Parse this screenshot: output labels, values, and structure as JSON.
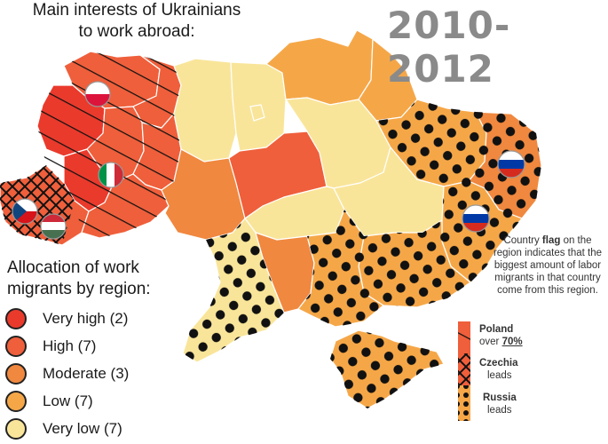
{
  "header": {
    "title_line1": "Main interests of Ukrainians",
    "title_line2": "to work abroad:",
    "period": "2010-2012"
  },
  "legend": {
    "title_line1": "Allocation of work",
    "title_line2": "migrants by region:",
    "items": [
      {
        "label": "Very high (2)",
        "color": "#ea3a2c"
      },
      {
        "label": "High (7)",
        "color": "#ef5f3b"
      },
      {
        "label": "Moderate (3)",
        "color": "#f0883f"
      },
      {
        "label": "Low (7)",
        "color": "#f5a748"
      },
      {
        "label": "Very low (7)",
        "color": "#f9e59a"
      }
    ]
  },
  "note": {
    "part1": "Country ",
    "bold": "flag",
    "part2": " on the region indicates that the biggest amount of labor migrants in that country come from this region."
  },
  "pattern_key": {
    "poland_title": "Poland",
    "poland_prefix": "over ",
    "poland_share": "70%",
    "czechia_title": "Czechia",
    "czechia_sub": "leads",
    "russia_title": "Russia",
    "russia_sub": "leads"
  },
  "flags": [
    "Poland",
    "Italy",
    "Czechia",
    "Hungary",
    "Russia",
    "Russia"
  ]
}
